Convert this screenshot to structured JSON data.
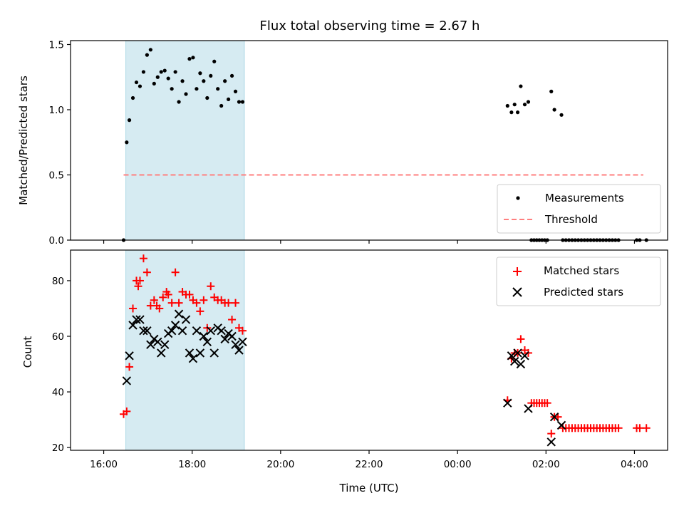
{
  "chart_data": {
    "type": "scatter",
    "title": "Flux total observing time = 2.67 h",
    "xlabel": "Time (UTC)",
    "x_tick_labels": [
      "16:00",
      "18:00",
      "20:00",
      "22:00",
      "00:00",
      "02:00",
      "04:00"
    ],
    "x_ticks_hours": [
      16,
      18,
      20,
      22,
      24,
      26,
      28
    ],
    "xlim_hours": [
      15.25,
      28.75
    ],
    "shaded_region_hours": [
      16.5,
      19.18
    ],
    "colors": {
      "shade": "#add8e6",
      "measurements": "#000000",
      "threshold": "#ff7f7f",
      "matched": "#ff0000",
      "predicted": "#000000"
    },
    "panels": {
      "top": {
        "ylabel": "Matched/Predicted stars",
        "ylim": [
          0,
          1.53
        ],
        "y_ticks": [
          0.0,
          0.5,
          1.0,
          1.5
        ],
        "y_tick_labels": [
          "0.0",
          "0.5",
          "1.0",
          "1.5"
        ],
        "threshold": {
          "y": 0.5,
          "x_start": 16.45,
          "x_end": 28.2
        },
        "legend": {
          "position": "bottom-right",
          "measurements_label": "Measurements",
          "threshold_label": "Threshold"
        },
        "measurements": {
          "x": [
            16.45,
            16.52,
            16.58,
            16.66,
            16.74,
            16.82,
            16.9,
            16.98,
            17.06,
            17.14,
            17.22,
            17.3,
            17.38,
            17.46,
            17.54,
            17.62,
            17.7,
            17.78,
            17.86,
            17.94,
            18.02,
            18.1,
            18.18,
            18.26,
            18.34,
            18.42,
            18.5,
            18.58,
            18.66,
            18.74,
            18.82,
            18.9,
            18.98,
            19.06,
            19.14,
            25.13,
            25.22,
            25.29,
            25.36,
            25.43,
            25.52,
            25.6,
            26.12,
            26.19,
            26.35,
            25.67,
            25.73,
            25.79,
            25.85,
            25.91,
            25.97,
            26.03,
            26.38,
            26.45,
            26.52,
            26.59,
            26.66,
            26.73,
            26.8,
            26.87,
            26.94,
            27.01,
            27.08,
            27.15,
            27.22,
            27.29,
            27.36,
            27.43,
            27.5,
            27.57,
            27.64,
            28.05,
            28.12,
            28.27
          ],
          "y": [
            0.0,
            0.75,
            0.92,
            1.09,
            1.21,
            1.18,
            1.29,
            1.42,
            1.46,
            1.2,
            1.25,
            1.29,
            1.3,
            1.24,
            1.16,
            1.29,
            1.06,
            1.22,
            1.12,
            1.39,
            1.4,
            1.16,
            1.28,
            1.22,
            1.09,
            1.26,
            1.37,
            1.16,
            1.03,
            1.22,
            1.08,
            1.26,
            1.14,
            1.06,
            1.06,
            1.03,
            0.98,
            1.04,
            0.98,
            1.18,
            1.04,
            1.06,
            1.14,
            1.0,
            0.96,
            0.0,
            0.0,
            0.0,
            0.0,
            0.0,
            0.0,
            0.0,
            0.0,
            0.0,
            0.0,
            0.0,
            0.0,
            0.0,
            0.0,
            0.0,
            0.0,
            0.0,
            0.0,
            0.0,
            0.0,
            0.0,
            0.0,
            0.0,
            0.0,
            0.0,
            0.0,
            0.0,
            0.0,
            0.0
          ]
        }
      },
      "bottom": {
        "ylabel": "Count",
        "ylim": [
          19,
          91
        ],
        "y_ticks": [
          20,
          40,
          60,
          80
        ],
        "y_tick_labels": [
          "20",
          "40",
          "60",
          "80"
        ],
        "legend": {
          "position": "top-right",
          "matched_label": "Matched stars",
          "predicted_label": "Predicted stars"
        },
        "matched": {
          "x": [
            16.45,
            16.52,
            16.58,
            16.66,
            16.74,
            16.78,
            16.82,
            16.9,
            16.98,
            17.06,
            17.14,
            17.2,
            17.26,
            17.34,
            17.42,
            17.46,
            17.54,
            17.62,
            17.7,
            17.78,
            17.86,
            17.94,
            18.02,
            18.1,
            18.18,
            18.26,
            18.34,
            18.42,
            18.5,
            18.58,
            18.66,
            18.74,
            18.82,
            18.9,
            18.98,
            19.06,
            19.14,
            25.13,
            25.22,
            25.29,
            25.36,
            25.43,
            25.52,
            25.6,
            25.67,
            25.73,
            25.79,
            25.85,
            25.91,
            25.97,
            26.03,
            26.12,
            26.19,
            26.27,
            26.38,
            26.45,
            26.52,
            26.59,
            26.66,
            26.73,
            26.8,
            26.87,
            26.94,
            27.01,
            27.08,
            27.15,
            27.22,
            27.29,
            27.36,
            27.43,
            27.5,
            27.57,
            27.64,
            28.05,
            28.12,
            28.27
          ],
          "y": [
            32,
            33,
            49,
            70,
            80,
            78,
            80,
            88,
            83,
            71,
            73,
            71,
            70,
            74,
            76,
            75,
            72,
            83,
            72,
            76,
            75,
            75,
            73,
            72,
            69,
            73,
            63,
            78,
            74,
            73,
            73,
            72,
            72,
            66,
            72,
            63,
            62,
            37,
            52,
            54,
            54,
            59,
            55,
            54,
            36,
            36,
            36,
            36,
            36,
            36,
            36,
            25,
            31,
            31,
            27,
            27,
            27,
            27,
            27,
            27,
            27,
            27,
            27,
            27,
            27,
            27,
            27,
            27,
            27,
            27,
            27,
            27,
            27,
            27,
            27,
            27
          ]
        },
        "predicted": {
          "x": [
            16.52,
            16.58,
            16.66,
            16.74,
            16.82,
            16.9,
            16.98,
            17.06,
            17.14,
            17.22,
            17.3,
            17.38,
            17.46,
            17.54,
            17.62,
            17.7,
            17.78,
            17.86,
            17.94,
            18.02,
            18.1,
            18.18,
            18.26,
            18.34,
            18.42,
            18.5,
            18.58,
            18.66,
            18.74,
            18.82,
            18.9,
            18.98,
            19.06,
            19.14,
            25.13,
            25.22,
            25.29,
            25.36,
            25.43,
            25.52,
            25.6,
            26.12,
            26.19,
            26.35
          ],
          "y": [
            44,
            53,
            64,
            66,
            66,
            62,
            62,
            57,
            59,
            58,
            54,
            57,
            61,
            62,
            64,
            68,
            62,
            66,
            54,
            52,
            62,
            54,
            60,
            58,
            62,
            54,
            63,
            62,
            59,
            61,
            60,
            57,
            55,
            58,
            36,
            53,
            51,
            54,
            50,
            53,
            34,
            22,
            31,
            28
          ]
        }
      }
    }
  }
}
